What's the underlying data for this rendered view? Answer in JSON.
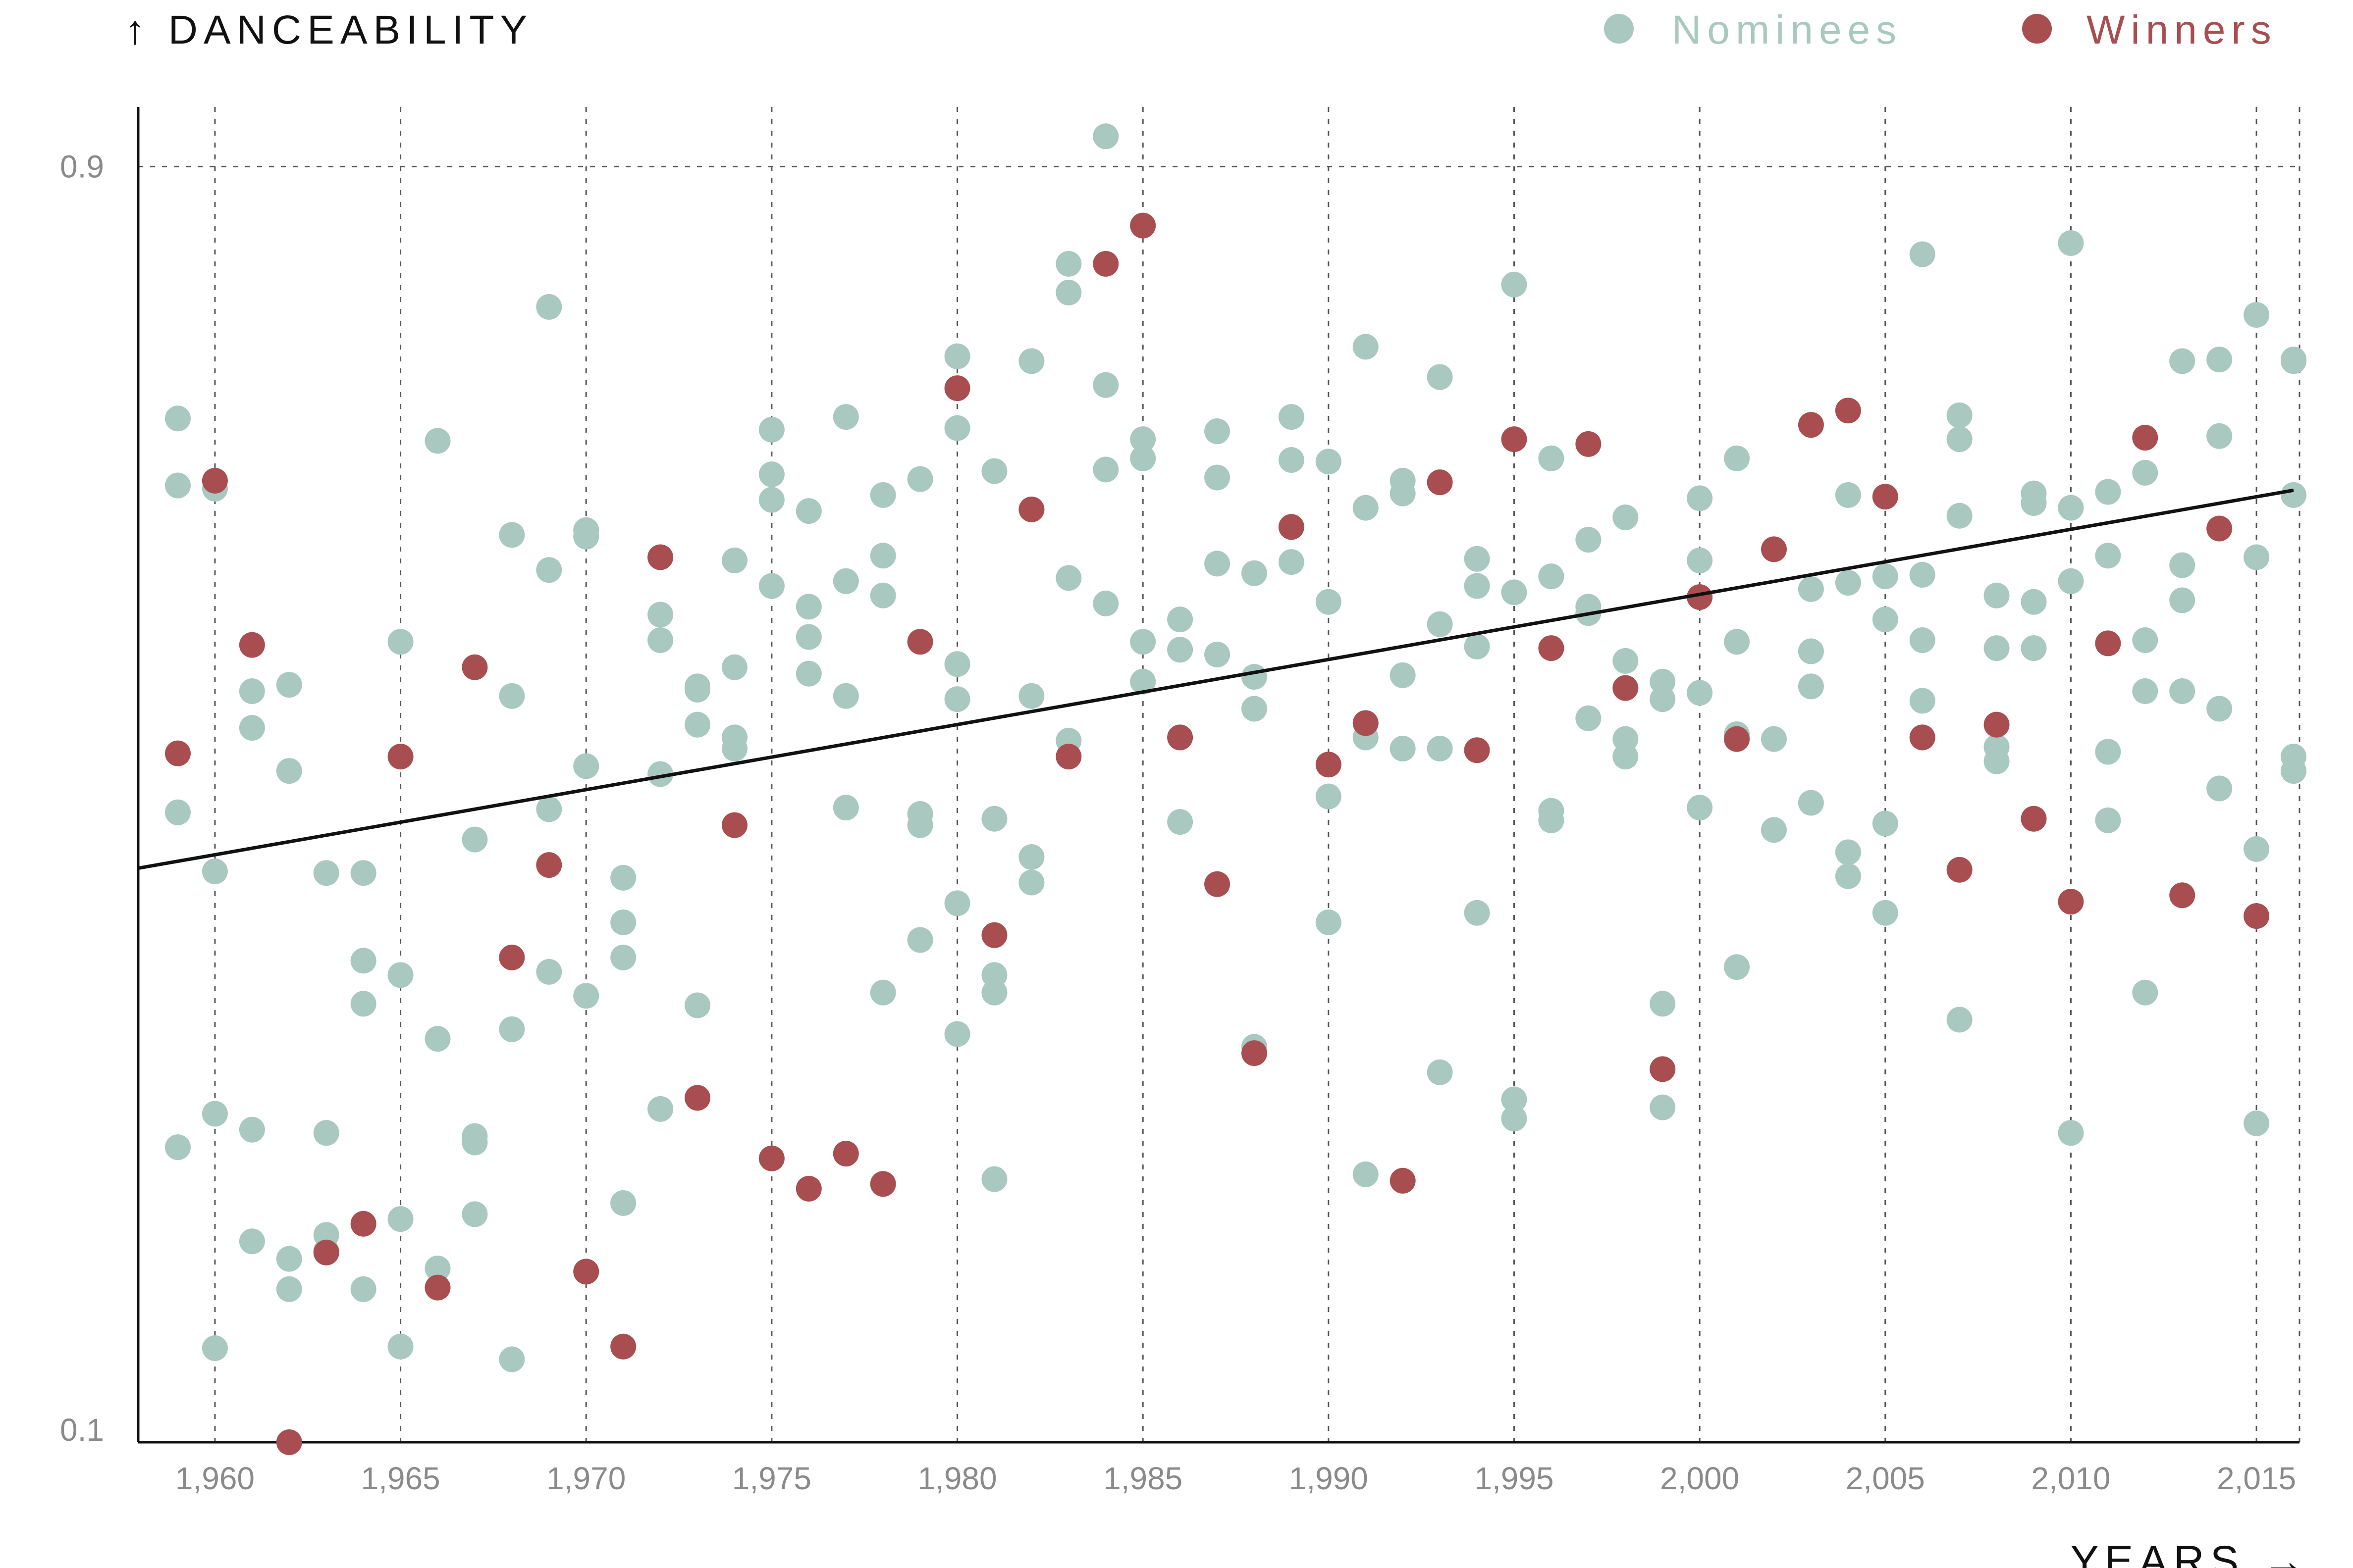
{
  "chart_data": {
    "type": "scatter",
    "title": "",
    "ylabel": "↑ DANCEABILITY",
    "xlabel": "YEARS →",
    "xlim": [
      1959,
      2016
    ],
    "ylim": [
      0.1,
      0.92
    ],
    "x_ticks": [
      1960,
      1965,
      1970,
      1975,
      1980,
      1985,
      1990,
      1995,
      2000,
      2005,
      2010,
      2015
    ],
    "x_tick_labels": [
      "1,960",
      "1,965",
      "1,970",
      "1,975",
      "1,980",
      "1,985",
      "1,990",
      "1,995",
      "2,000",
      "2,005",
      "2,010",
      "2,015"
    ],
    "y_ticks": [
      0.1,
      0.9
    ],
    "y_tick_labels": [
      "0.1",
      "0.9"
    ],
    "grid": true,
    "legend_position": "top-right",
    "legend": [
      {
        "key": "nominees",
        "label": "Nominees",
        "color": "#a8c8c0"
      },
      {
        "key": "winners",
        "label": "Winners",
        "color": "#a84e50"
      }
    ],
    "trendline": {
      "x": [
        1959,
        2016
      ],
      "y": [
        0.46,
        0.697
      ]
    },
    "series": [
      {
        "name": "Nominees",
        "color": "#a8c8c0",
        "points": [
          [
            1959,
            0.742
          ],
          [
            1959,
            0.7
          ],
          [
            1959,
            0.495
          ],
          [
            1959,
            0.285
          ],
          [
            1960,
            0.698
          ],
          [
            1960,
            0.458
          ],
          [
            1960,
            0.306
          ],
          [
            1960,
            0.159
          ],
          [
            1961,
            0.571
          ],
          [
            1961,
            0.548
          ],
          [
            1961,
            0.296
          ],
          [
            1961,
            0.226
          ],
          [
            1962,
            0.575
          ],
          [
            1962,
            0.521
          ],
          [
            1962,
            0.215
          ],
          [
            1962,
            0.196
          ],
          [
            1963,
            0.457
          ],
          [
            1963,
            0.294
          ],
          [
            1963,
            0.23
          ],
          [
            1963,
            0.22
          ],
          [
            1964,
            0.457
          ],
          [
            1964,
            0.402
          ],
          [
            1964,
            0.375
          ],
          [
            1964,
            0.196
          ],
          [
            1965,
            0.602
          ],
          [
            1965,
            0.393
          ],
          [
            1965,
            0.24
          ],
          [
            1965,
            0.16
          ],
          [
            1966,
            0.728
          ],
          [
            1966,
            0.353
          ],
          [
            1966,
            0.209
          ],
          [
            1967,
            0.478
          ],
          [
            1967,
            0.292
          ],
          [
            1967,
            0.288
          ],
          [
            1967,
            0.243
          ],
          [
            1968,
            0.669
          ],
          [
            1968,
            0.568
          ],
          [
            1968,
            0.359
          ],
          [
            1968,
            0.152
          ],
          [
            1969,
            0.812
          ],
          [
            1969,
            0.647
          ],
          [
            1969,
            0.497
          ],
          [
            1969,
            0.395
          ],
          [
            1970,
            0.672
          ],
          [
            1970,
            0.668
          ],
          [
            1970,
            0.524
          ],
          [
            1970,
            0.38
          ],
          [
            1971,
            0.454
          ],
          [
            1971,
            0.426
          ],
          [
            1971,
            0.404
          ],
          [
            1971,
            0.25
          ],
          [
            1972,
            0.619
          ],
          [
            1972,
            0.603
          ],
          [
            1972,
            0.519
          ],
          [
            1972,
            0.309
          ],
          [
            1973,
            0.574
          ],
          [
            1973,
            0.572
          ],
          [
            1973,
            0.55
          ],
          [
            1973,
            0.374
          ],
          [
            1974,
            0.653
          ],
          [
            1974,
            0.586
          ],
          [
            1974,
            0.542
          ],
          [
            1974,
            0.535
          ],
          [
            1975,
            0.735
          ],
          [
            1975,
            0.707
          ],
          [
            1975,
            0.691
          ],
          [
            1975,
            0.637
          ],
          [
            1976,
            0.684
          ],
          [
            1976,
            0.624
          ],
          [
            1976,
            0.605
          ],
          [
            1976,
            0.582
          ],
          [
            1977,
            0.743
          ],
          [
            1977,
            0.64
          ],
          [
            1977,
            0.568
          ],
          [
            1977,
            0.498
          ],
          [
            1978,
            0.694
          ],
          [
            1978,
            0.656
          ],
          [
            1978,
            0.631
          ],
          [
            1978,
            0.382
          ],
          [
            1979,
            0.704
          ],
          [
            1979,
            0.494
          ],
          [
            1979,
            0.487
          ],
          [
            1979,
            0.415
          ],
          [
            1980,
            0.781
          ],
          [
            1980,
            0.736
          ],
          [
            1980,
            0.588
          ],
          [
            1980,
            0.566
          ],
          [
            1980,
            0.438
          ],
          [
            1980,
            0.356
          ],
          [
            1981,
            0.709
          ],
          [
            1981,
            0.491
          ],
          [
            1981,
            0.393
          ],
          [
            1981,
            0.382
          ],
          [
            1981,
            0.265
          ],
          [
            1982,
            0.778
          ],
          [
            1982,
            0.568
          ],
          [
            1982,
            0.467
          ],
          [
            1982,
            0.451
          ],
          [
            1983,
            0.839
          ],
          [
            1983,
            0.821
          ],
          [
            1983,
            0.642
          ],
          [
            1983,
            0.54
          ],
          [
            1984,
            0.919
          ],
          [
            1984,
            0.763
          ],
          [
            1984,
            0.71
          ],
          [
            1984,
            0.626
          ],
          [
            1985,
            0.729
          ],
          [
            1985,
            0.717
          ],
          [
            1985,
            0.602
          ],
          [
            1985,
            0.577
          ],
          [
            1986,
            0.616
          ],
          [
            1986,
            0.597
          ],
          [
            1986,
            0.489
          ],
          [
            1987,
            0.734
          ],
          [
            1987,
            0.705
          ],
          [
            1987,
            0.651
          ],
          [
            1987,
            0.594
          ],
          [
            1988,
            0.645
          ],
          [
            1988,
            0.58
          ],
          [
            1988,
            0.56
          ],
          [
            1988,
            0.348
          ],
          [
            1989,
            0.743
          ],
          [
            1989,
            0.716
          ],
          [
            1989,
            0.674
          ],
          [
            1989,
            0.652
          ],
          [
            1990,
            0.715
          ],
          [
            1990,
            0.627
          ],
          [
            1990,
            0.505
          ],
          [
            1990,
            0.426
          ],
          [
            1991,
            0.787
          ],
          [
            1991,
            0.686
          ],
          [
            1991,
            0.542
          ],
          [
            1991,
            0.268
          ],
          [
            1992,
            0.703
          ],
          [
            1992,
            0.695
          ],
          [
            1992,
            0.581
          ],
          [
            1992,
            0.535
          ],
          [
            1993,
            0.768
          ],
          [
            1993,
            0.613
          ],
          [
            1993,
            0.535
          ],
          [
            1993,
            0.332
          ],
          [
            1994,
            0.654
          ],
          [
            1994,
            0.637
          ],
          [
            1994,
            0.599
          ],
          [
            1994,
            0.432
          ],
          [
            1995,
            0.826
          ],
          [
            1995,
            0.633
          ],
          [
            1995,
            0.315
          ],
          [
            1995,
            0.303
          ],
          [
            1996,
            0.717
          ],
          [
            1996,
            0.643
          ],
          [
            1996,
            0.496
          ],
          [
            1996,
            0.49
          ],
          [
            1997,
            0.666
          ],
          [
            1997,
            0.624
          ],
          [
            1997,
            0.62
          ],
          [
            1997,
            0.554
          ],
          [
            1998,
            0.68
          ],
          [
            1998,
            0.59
          ],
          [
            1998,
            0.541
          ],
          [
            1998,
            0.53
          ],
          [
            1999,
            0.577
          ],
          [
            1999,
            0.566
          ],
          [
            1999,
            0.375
          ],
          [
            1999,
            0.31
          ],
          [
            2000,
            0.692
          ],
          [
            2000,
            0.653
          ],
          [
            2000,
            0.57
          ],
          [
            2000,
            0.498
          ],
          [
            2001,
            0.717
          ],
          [
            2001,
            0.602
          ],
          [
            2001,
            0.544
          ],
          [
            2001,
            0.398
          ],
          [
            2002,
            0.541
          ],
          [
            2002,
            0.484
          ],
          [
            2003,
            0.635
          ],
          [
            2003,
            0.596
          ],
          [
            2003,
            0.574
          ],
          [
            2003,
            0.501
          ],
          [
            2004,
            0.694
          ],
          [
            2004,
            0.639
          ],
          [
            2004,
            0.47
          ],
          [
            2004,
            0.455
          ],
          [
            2005,
            0.643
          ],
          [
            2005,
            0.616
          ],
          [
            2005,
            0.488
          ],
          [
            2005,
            0.432
          ],
          [
            2006,
            0.845
          ],
          [
            2006,
            0.644
          ],
          [
            2006,
            0.603
          ],
          [
            2006,
            0.565
          ],
          [
            2007,
            0.744
          ],
          [
            2007,
            0.729
          ],
          [
            2007,
            0.681
          ],
          [
            2007,
            0.365
          ],
          [
            2008,
            0.631
          ],
          [
            2008,
            0.598
          ],
          [
            2008,
            0.536
          ],
          [
            2008,
            0.527
          ],
          [
            2009,
            0.695
          ],
          [
            2009,
            0.689
          ],
          [
            2009,
            0.627
          ],
          [
            2009,
            0.598
          ],
          [
            2010,
            0.852
          ],
          [
            2010,
            0.686
          ],
          [
            2010,
            0.64
          ],
          [
            2010,
            0.294
          ],
          [
            2011,
            0.696
          ],
          [
            2011,
            0.656
          ],
          [
            2011,
            0.533
          ],
          [
            2011,
            0.49
          ],
          [
            2012,
            0.708
          ],
          [
            2012,
            0.603
          ],
          [
            2012,
            0.571
          ],
          [
            2012,
            0.382
          ],
          [
            2013,
            0.778
          ],
          [
            2013,
            0.65
          ],
          [
            2013,
            0.628
          ],
          [
            2013,
            0.571
          ],
          [
            2014,
            0.779
          ],
          [
            2014,
            0.731
          ],
          [
            2014,
            0.56
          ],
          [
            2014,
            0.51
          ],
          [
            2015,
            0.807
          ],
          [
            2015,
            0.655
          ],
          [
            2015,
            0.472
          ],
          [
            2015,
            0.3
          ],
          [
            2016,
            0.779
          ],
          [
            2016,
            0.778
          ],
          [
            2016,
            0.694
          ],
          [
            2016,
            0.53
          ],
          [
            2016,
            0.521
          ]
        ]
      },
      {
        "name": "Winners",
        "color": "#a84e50",
        "points": [
          [
            1959,
            0.532
          ],
          [
            1960,
            0.703
          ],
          [
            1961,
            0.6
          ],
          [
            1962,
            0.1
          ],
          [
            1963,
            0.219
          ],
          [
            1964,
            0.237
          ],
          [
            1965,
            0.53
          ],
          [
            1966,
            0.197
          ],
          [
            1967,
            0.586
          ],
          [
            1968,
            0.404
          ],
          [
            1969,
            0.462
          ],
          [
            1970,
            0.207
          ],
          [
            1971,
            0.16
          ],
          [
            1972,
            0.655
          ],
          [
            1973,
            0.316
          ],
          [
            1974,
            0.487
          ],
          [
            1975,
            0.278
          ],
          [
            1976,
            0.259
          ],
          [
            1977,
            0.281
          ],
          [
            1978,
            0.262
          ],
          [
            1979,
            0.602
          ],
          [
            1980,
            0.761
          ],
          [
            1981,
            0.418
          ],
          [
            1982,
            0.685
          ],
          [
            1983,
            0.53
          ],
          [
            1984,
            0.839
          ],
          [
            1985,
            0.863
          ],
          [
            1986,
            0.542
          ],
          [
            1987,
            0.45
          ],
          [
            1988,
            0.344
          ],
          [
            1989,
            0.674
          ],
          [
            1990,
            0.525
          ],
          [
            1991,
            0.551
          ],
          [
            1992,
            0.264
          ],
          [
            1993,
            0.702
          ],
          [
            1994,
            0.534
          ],
          [
            1995,
            0.729
          ],
          [
            1996,
            0.598
          ],
          [
            1997,
            0.726
          ],
          [
            1998,
            0.573
          ],
          [
            1999,
            0.334
          ],
          [
            2000,
            0.63
          ],
          [
            2001,
            0.541
          ],
          [
            2002,
            0.66
          ],
          [
            2003,
            0.738
          ],
          [
            2004,
            0.747
          ],
          [
            2005,
            0.693
          ],
          [
            2006,
            0.542
          ],
          [
            2007,
            0.459
          ],
          [
            2008,
            0.55
          ],
          [
            2009,
            0.491
          ],
          [
            2010,
            0.439
          ],
          [
            2011,
            0.601
          ],
          [
            2012,
            0.73
          ],
          [
            2013,
            0.443
          ],
          [
            2014,
            0.673
          ],
          [
            2015,
            0.43
          ]
        ]
      }
    ]
  }
}
